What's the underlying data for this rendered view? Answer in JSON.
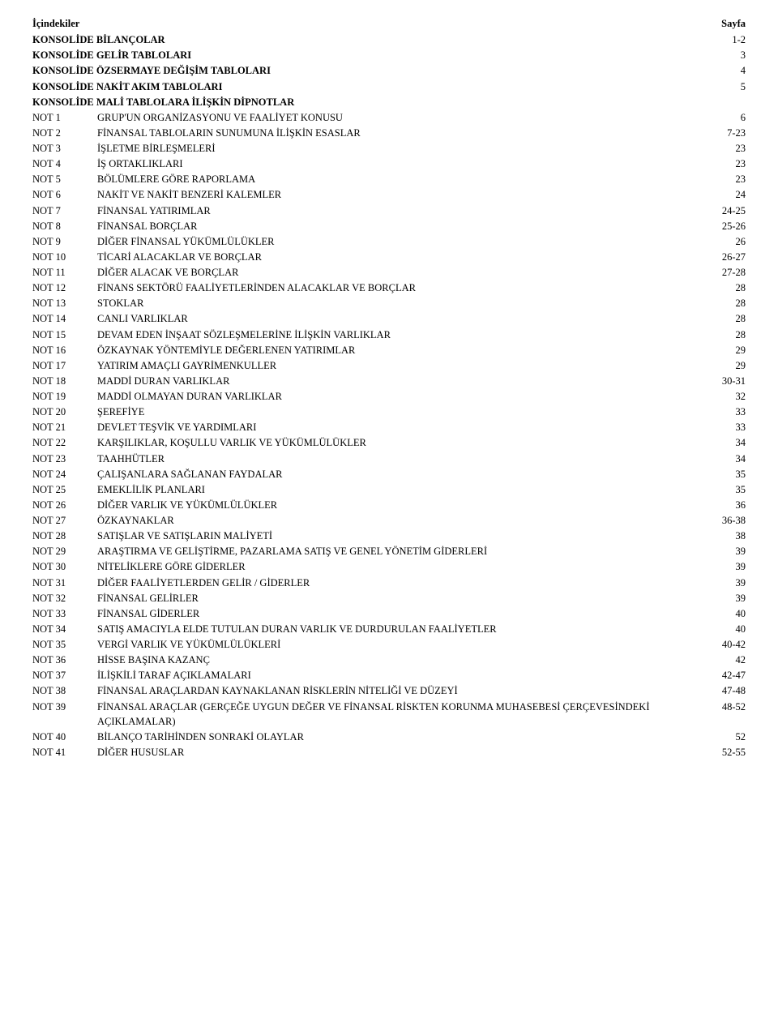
{
  "header": {
    "left": "İçindekiler",
    "right": "Sayfa"
  },
  "sections": [
    {
      "label": "",
      "title": "KONSOLİDE BİLANÇOLAR",
      "page": "1-2",
      "bold": true
    },
    {
      "label": "",
      "title": "KONSOLİDE GELİR TABLOLARI",
      "page": "3",
      "bold": true
    },
    {
      "label": "",
      "title": "KONSOLİDE ÖZSERMAYE DEĞİŞİM TABLOLARI",
      "page": "4",
      "bold": true
    },
    {
      "label": "",
      "title": "KONSOLİDE NAKİT AKIM TABLOLARI",
      "page": "5",
      "bold": true
    },
    {
      "label": "",
      "title": "KONSOLİDE MALİ TABLOLARA İLİŞKİN DİPNOTLAR",
      "page": "",
      "bold": true
    }
  ],
  "notes": [
    {
      "label": "NOT 1",
      "title": "GRUP'UN ORGANİZASYONU VE FAALİYET KONUSU",
      "page": "6"
    },
    {
      "label": "NOT 2",
      "title": "FİNANSAL TABLOLARIN SUNUMUNA İLİŞKİN ESASLAR",
      "page": "7-23"
    },
    {
      "label": "NOT 3",
      "title": "İŞLETME BİRLEŞMELERİ",
      "page": "23"
    },
    {
      "label": "NOT 4",
      "title": "İŞ ORTAKLIKLARI",
      "page": "23"
    },
    {
      "label": "NOT 5",
      "title": "BÖLÜMLERE GÖRE RAPORLAMA",
      "page": "23"
    },
    {
      "label": "NOT 6",
      "title": "NAKİT VE NAKİT BENZERİ KALEMLER",
      "page": "24"
    },
    {
      "label": "NOT 7",
      "title": "FİNANSAL YATIRIMLAR",
      "page": "24-25"
    },
    {
      "label": "NOT 8",
      "title": "FİNANSAL BORÇLAR",
      "page": "25-26"
    },
    {
      "label": "NOT 9",
      "title": "DİĞER FİNANSAL YÜKÜMLÜLÜKLER",
      "page": "26"
    },
    {
      "label": "NOT 10",
      "title": "TİCARİ ALACAKLAR VE BORÇLAR",
      "page": "26-27"
    },
    {
      "label": "NOT 11",
      "title": "DİĞER ALACAK VE BORÇLAR",
      "page": "27-28"
    },
    {
      "label": "NOT 12",
      "title": "FİNANS SEKTÖRÜ FAALİYETLERİNDEN ALACAKLAR VE BORÇLAR",
      "page": "28"
    },
    {
      "label": "NOT 13",
      "title": "STOKLAR",
      "page": "28"
    },
    {
      "label": "NOT 14",
      "title": "CANLI VARLIKLAR",
      "page": "28"
    },
    {
      "label": "NOT 15",
      "title": "DEVAM EDEN İNŞAAT SÖZLEŞMELERİNE İLİŞKİN VARLIKLAR",
      "page": "28"
    },
    {
      "label": "NOT 16",
      "title": "ÖZKAYNAK YÖNTEMİYLE DEĞERLENEN YATIRIMLAR",
      "page": "29"
    },
    {
      "label": "NOT 17",
      "title": "YATIRIM AMAÇLI GAYRİMENKULLER",
      "page": "29"
    },
    {
      "label": "NOT 18",
      "title": "MADDİ DURAN VARLIKLAR",
      "page": "30-31"
    },
    {
      "label": "NOT 19",
      "title": "MADDİ OLMAYAN DURAN VARLIKLAR",
      "page": "32"
    },
    {
      "label": "NOT 20",
      "title": "ŞEREFİYE",
      "page": "33"
    },
    {
      "label": "NOT 21",
      "title": "DEVLET TEŞVİK VE YARDIMLARI",
      "page": "33"
    },
    {
      "label": "NOT 22",
      "title": "KARŞILIKLAR, KOŞULLU VARLIK VE YÜKÜMLÜLÜKLER",
      "page": "34"
    },
    {
      "label": "NOT 23",
      "title": "TAAHHÜTLER",
      "page": "34"
    },
    {
      "label": "NOT 24",
      "title": "ÇALIŞANLARA SAĞLANAN FAYDALAR",
      "page": "35"
    },
    {
      "label": "NOT 25",
      "title": "EMEKLİLİK PLANLARI",
      "page": "35"
    },
    {
      "label": "NOT 26",
      "title": "DİĞER VARLIK VE YÜKÜMLÜLÜKLER",
      "page": "36"
    },
    {
      "label": "NOT 27",
      "title": "ÖZKAYNAKLAR",
      "page": "36-38"
    },
    {
      "label": "NOT 28",
      "title": "SATIŞLAR VE SATIŞLARIN MALİYETİ",
      "page": "38"
    },
    {
      "label": "NOT 29",
      "title": "ARAŞTIRMA VE GELİŞTİRME, PAZARLAMA SATIŞ VE GENEL YÖNETİM GİDERLERİ",
      "page": "39"
    },
    {
      "label": "NOT 30",
      "title": "NİTELİKLERE GÖRE GİDERLER",
      "page": "39"
    },
    {
      "label": "NOT 31",
      "title": "DİĞER FAALİYETLERDEN GELİR / GİDERLER",
      "page": "39"
    },
    {
      "label": "NOT 32",
      "title": "FİNANSAL GELİRLER",
      "page": "39"
    },
    {
      "label": "NOT 33",
      "title": "FİNANSAL GİDERLER",
      "page": "40"
    },
    {
      "label": "NOT 34",
      "title": "SATIŞ AMACIYLA ELDE TUTULAN DURAN VARLIK VE DURDURULAN FAALİYETLER",
      "page": "40"
    },
    {
      "label": "NOT 35",
      "title": "VERGİ VARLIK VE YÜKÜMLÜLÜKLERİ",
      "page": "40-42"
    },
    {
      "label": "NOT 36",
      "title": "HİSSE BAŞINA KAZANÇ",
      "page": "42"
    },
    {
      "label": "NOT 37",
      "title": "İLİŞKİLİ TARAF AÇIKLAMALARI",
      "page": "42-47"
    },
    {
      "label": "NOT 38",
      "title": "FİNANSAL ARAÇLARDAN KAYNAKLANAN RİSKLERİN NİTELİĞİ VE DÜZEYİ",
      "page": "47-48"
    },
    {
      "label": "NOT 39",
      "title": "FİNANSAL ARAÇLAR (GERÇEĞE UYGUN DEĞER VE FİNANSAL RİSKTEN KORUNMA MUHASEBESİ ÇERÇEVESİNDEKİ AÇIKLAMALAR)",
      "page": "48-52"
    },
    {
      "label": "NOT 40",
      "title": "BİLANÇO TARİHİNDEN SONRAKİ OLAYLAR",
      "page": "52"
    },
    {
      "label": "NOT 41",
      "title": "DİĞER HUSUSLAR",
      "page": "52-55"
    }
  ]
}
